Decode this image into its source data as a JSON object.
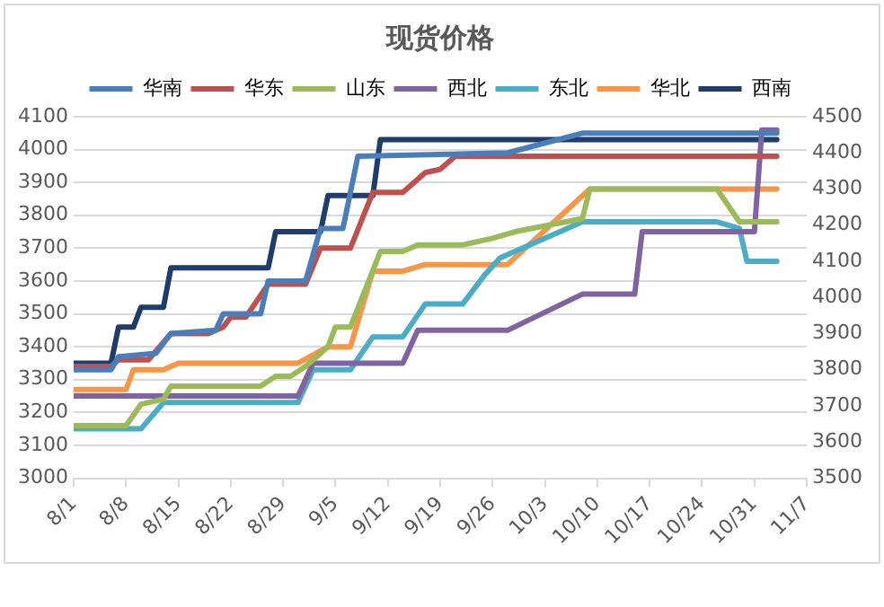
{
  "chart_data": {
    "type": "line",
    "title": "现货价格",
    "legend": "top",
    "grid": "y",
    "marker": "none",
    "line_style": "solid",
    "xlim": [
      "--08-01",
      "--11-07"
    ],
    "xticks": [
      {
        "value": "--08-01",
        "label": "8/1"
      },
      {
        "value": "--08-08",
        "label": "8/8"
      },
      {
        "value": "--08-15",
        "label": "8/15"
      },
      {
        "value": "--08-22",
        "label": "8/22"
      },
      {
        "value": "--08-29",
        "label": "8/29"
      },
      {
        "value": "--09-05",
        "label": "9/5"
      },
      {
        "value": "--09-12",
        "label": "9/12"
      },
      {
        "value": "--09-19",
        "label": "9/19"
      },
      {
        "value": "--09-26",
        "label": "9/26"
      },
      {
        "value": "--10-03",
        "label": "10/3"
      },
      {
        "value": "--10-10",
        "label": "10/10"
      },
      {
        "value": "--10-17",
        "label": "10/17"
      },
      {
        "value": "--10-24",
        "label": "10/24"
      },
      {
        "value": "--10-31",
        "label": "10/31"
      },
      {
        "value": "--11-07",
        "label": "11/7"
      }
    ],
    "ylim": [
      3000,
      4100
    ],
    "yticks": [
      3000,
      3100,
      3200,
      3300,
      3400,
      3500,
      3600,
      3700,
      3800,
      3900,
      4000,
      4100
    ],
    "y2lim": [
      3500,
      4500
    ],
    "y2ticks": [
      3500,
      3600,
      3700,
      3800,
      3900,
      4000,
      4100,
      4200,
      4300,
      4400,
      4500
    ],
    "series": [
      {
        "name": "华南",
        "color": "#4a7ebb",
        "x": [
          "--08-01",
          "--08-06",
          "--08-07",
          "--08-12",
          "--08-14",
          "--08-20",
          "--08-21",
          "--08-26",
          "--08-27",
          "--09-01",
          "--09-03",
          "--09-06",
          "--09-08",
          "--09-28",
          "--10-08",
          "--11-03"
        ],
        "values": [
          3330,
          3330,
          3370,
          3380,
          3440,
          3450,
          3500,
          3500,
          3600,
          3600,
          3760,
          3760,
          3980,
          3990,
          4050,
          4050
        ]
      },
      {
        "name": "华东",
        "color": "#c0504d",
        "x": [
          "--08-01",
          "--08-06",
          "--08-07",
          "--08-11",
          "--08-14",
          "--08-19",
          "--08-21",
          "--08-22",
          "--08-24",
          "--08-27",
          "--09-01",
          "--09-03",
          "--09-07",
          "--09-10",
          "--09-14",
          "--09-17",
          "--09-19",
          "--09-21",
          "--11-03"
        ],
        "values": [
          3340,
          3340,
          3360,
          3360,
          3440,
          3440,
          3460,
          3490,
          3490,
          3590,
          3590,
          3700,
          3700,
          3870,
          3870,
          3930,
          3940,
          3980,
          3980
        ]
      },
      {
        "name": "山东",
        "color": "#9bbb59",
        "x": [
          "--08-01",
          "--08-08",
          "--08-10",
          "--08-13",
          "--08-14",
          "--08-26",
          "--08-28",
          "--08-30",
          "--09-01",
          "--09-04",
          "--09-05",
          "--09-07",
          "--09-11",
          "--09-14",
          "--09-16",
          "--09-22",
          "--09-26",
          "--09-29",
          "--10-08",
          "--10-09",
          "--10-26",
          "--10-29",
          "--11-03"
        ],
        "values": [
          3160,
          3160,
          3225,
          3240,
          3280,
          3280,
          3310,
          3310,
          3340,
          3400,
          3460,
          3460,
          3690,
          3690,
          3710,
          3710,
          3730,
          3750,
          3790,
          3880,
          3880,
          3780,
          3780
        ]
      },
      {
        "name": "西北",
        "color": "#8064a2",
        "x": [
          "--08-01",
          "--08-31",
          "--09-02",
          "--09-14",
          "--09-16",
          "--09-28",
          "--10-08",
          "--10-15",
          "--10-16",
          "--10-31",
          "--11-01",
          "--11-03"
        ],
        "values": [
          3250,
          3250,
          3350,
          3350,
          3450,
          3450,
          3560,
          3560,
          3750,
          3750,
          4060,
          4060
        ]
      },
      {
        "name": "东北",
        "color": "#4bacc6",
        "x": [
          "--08-01",
          "--08-10",
          "--08-13",
          "--08-31",
          "--09-02",
          "--09-07",
          "--09-10",
          "--09-14",
          "--09-17",
          "--09-22",
          "--09-25",
          "--09-27",
          "--10-02",
          "--10-08",
          "--10-26",
          "--10-29",
          "--10-30",
          "--11-03"
        ],
        "values": [
          3150,
          3150,
          3230,
          3230,
          3330,
          3330,
          3430,
          3430,
          3530,
          3530,
          3620,
          3670,
          3720,
          3780,
          3780,
          3760,
          3660,
          3660
        ]
      },
      {
        "name": "华北",
        "color": "#f79646",
        "x": [
          "--08-01",
          "--08-08",
          "--08-09",
          "--08-13",
          "--08-15",
          "--08-31",
          "--09-04",
          "--09-07",
          "--09-10",
          "--09-14",
          "--09-17",
          "--09-28",
          "--10-09",
          "--11-03"
        ],
        "values": [
          3270,
          3270,
          3330,
          3330,
          3350,
          3350,
          3400,
          3400,
          3630,
          3630,
          3650,
          3650,
          3880,
          3880
        ]
      },
      {
        "name": "西南",
        "color": "#1f3d6b",
        "x": [
          "--08-01",
          "--08-06",
          "--08-07",
          "--08-09",
          "--08-10",
          "--08-13",
          "--08-14",
          "--08-27",
          "--08-28",
          "--09-03",
          "--09-04",
          "--09-10",
          "--09-11",
          "--11-03"
        ],
        "values": [
          3350,
          3350,
          3460,
          3460,
          3520,
          3520,
          3640,
          3640,
          3750,
          3750,
          3860,
          3860,
          4030,
          4030
        ]
      }
    ]
  }
}
